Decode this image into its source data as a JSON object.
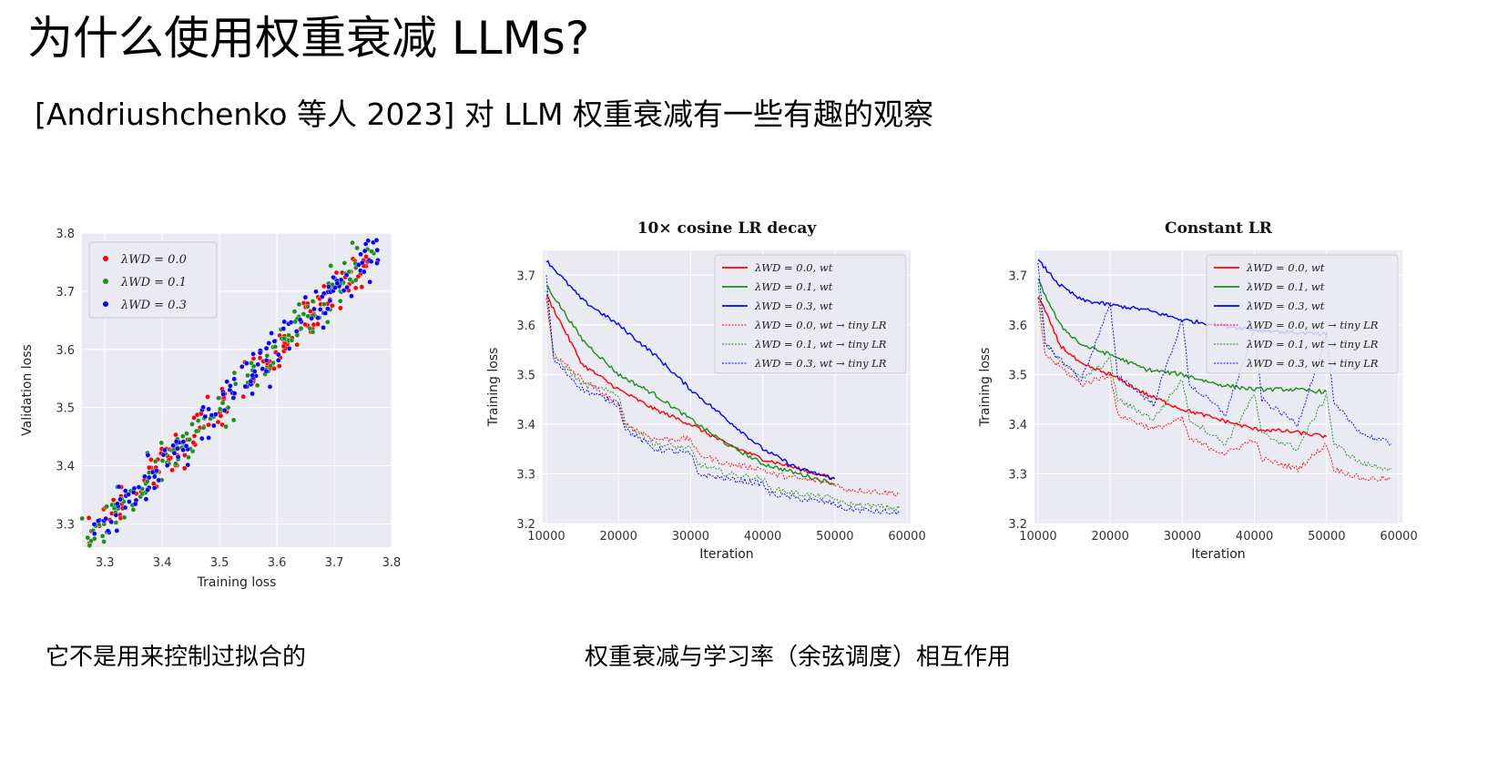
{
  "slide": {
    "title": "为什么使用权重衰减 LLMs?",
    "subtitle": "[Andriushchenko 等人 2023] 对 LLM 权重衰减有一些有趣的观察",
    "caption_left": "它不是用来控制过拟合的",
    "caption_right": "权重衰减与学习率（余弦调度）相互作用"
  },
  "chart_data": [
    {
      "type": "scatter",
      "title": "",
      "xlabel": "Training loss",
      "ylabel": "Validation loss",
      "xlim": [
        3.26,
        3.8
      ],
      "ylim": [
        3.26,
        3.8
      ],
      "xticks": [
        "3.3",
        "3.4",
        "3.5",
        "3.6",
        "3.7",
        "3.8"
      ],
      "yticks": [
        "3.3",
        "3.4",
        "3.5",
        "3.6",
        "3.7",
        "3.8"
      ],
      "legend_position": "top-left",
      "series": [
        {
          "name": "λWD = 0.0",
          "color": "#ff0000",
          "x_range": [
            3.27,
            3.76
          ],
          "spread": 0.018
        },
        {
          "name": "λWD = 0.1",
          "color": "#1a8f1a",
          "x_range": [
            3.26,
            3.77
          ],
          "spread": 0.018
        },
        {
          "name": "λWD = 0.3",
          "color": "#0000ff",
          "x_range": [
            3.28,
            3.79
          ],
          "spread": 0.018
        }
      ],
      "legend_labels": [
        "λWD = 0.0",
        "λWD = 0.1",
        "λWD = 0.3"
      ]
    },
    {
      "type": "line",
      "title": "10× cosine LR decay",
      "xlabel": "Iteration",
      "ylabel": "Training loss",
      "xlim": [
        9500,
        60500
      ],
      "ylim": [
        3.2,
        3.75
      ],
      "xticks": [
        "10000",
        "20000",
        "30000",
        "40000",
        "50000",
        "60000"
      ],
      "yticks": [
        "3.2",
        "3.3",
        "3.4",
        "3.5",
        "3.6",
        "3.7"
      ],
      "legend_position": "top-right",
      "legend_labels": [
        "λWD = 0.0, wt",
        "λWD = 0.1, wt",
        "λWD = 0.3, wt",
        "λWD = 0.0, wt → tiny LR",
        "λWD = 0.1, wt → tiny LR",
        "λWD = 0.3, wt → tiny LR"
      ],
      "series": [
        {
          "name": "λWD = 0.0, wt",
          "color": "#ff0000",
          "style": "solid",
          "x": [
            10000,
            15000,
            20000,
            25000,
            30000,
            35000,
            40000,
            45000,
            50000
          ],
          "y": [
            3.66,
            3.52,
            3.47,
            3.43,
            3.4,
            3.36,
            3.33,
            3.31,
            3.29
          ]
        },
        {
          "name": "λWD = 0.1, wt",
          "color": "#1a8f1a",
          "style": "solid",
          "x": [
            10000,
            15000,
            20000,
            25000,
            30000,
            35000,
            40000,
            45000,
            50000
          ],
          "y": [
            3.68,
            3.57,
            3.5,
            3.46,
            3.41,
            3.36,
            3.32,
            3.3,
            3.28
          ]
        },
        {
          "name": "λWD = 0.3, wt",
          "color": "#0000ff",
          "style": "solid",
          "x": [
            10000,
            15000,
            20000,
            25000,
            30000,
            35000,
            40000,
            45000,
            50000
          ],
          "y": [
            3.73,
            3.65,
            3.6,
            3.54,
            3.47,
            3.41,
            3.35,
            3.31,
            3.29
          ]
        },
        {
          "name": "λWD = 0.0, wt → tiny LR",
          "color": "#ff0000",
          "style": "dashed",
          "x": [
            10000,
            11000,
            15000,
            20000,
            21000,
            25000,
            30000,
            31000,
            35000,
            40000,
            41000,
            45000,
            50000,
            51000,
            55000,
            59000
          ],
          "y": [
            3.65,
            3.54,
            3.49,
            3.44,
            3.4,
            3.37,
            3.37,
            3.34,
            3.32,
            3.31,
            3.3,
            3.29,
            3.28,
            3.27,
            3.265,
            3.26
          ]
        },
        {
          "name": "λWD = 0.1, wt → tiny LR",
          "color": "#1a8f1a",
          "style": "dashed",
          "x": [
            10000,
            11000,
            15000,
            20000,
            21000,
            25000,
            30000,
            31000,
            35000,
            40000,
            41000,
            45000,
            50000,
            51000,
            55000,
            59000
          ],
          "y": [
            3.67,
            3.54,
            3.48,
            3.46,
            3.4,
            3.36,
            3.35,
            3.32,
            3.3,
            3.29,
            3.27,
            3.26,
            3.25,
            3.24,
            3.235,
            3.23
          ]
        },
        {
          "name": "λWD = 0.3, wt → tiny LR",
          "color": "#0000ff",
          "style": "dashed",
          "x": [
            10000,
            11000,
            15000,
            20000,
            21000,
            25000,
            30000,
            31000,
            35000,
            40000,
            41000,
            45000,
            50000,
            51000,
            55000,
            59000
          ],
          "y": [
            3.7,
            3.53,
            3.47,
            3.44,
            3.39,
            3.35,
            3.34,
            3.3,
            3.29,
            3.28,
            3.26,
            3.25,
            3.24,
            3.23,
            3.225,
            3.22
          ]
        }
      ]
    },
    {
      "type": "line",
      "title": "Constant LR",
      "xlabel": "Iteration",
      "ylabel": "Training loss",
      "xlim": [
        9500,
        60500
      ],
      "ylim": [
        3.2,
        3.75
      ],
      "xticks": [
        "10000",
        "20000",
        "30000",
        "40000",
        "50000",
        "60000"
      ],
      "yticks": [
        "3.2",
        "3.3",
        "3.4",
        "3.5",
        "3.6",
        "3.7"
      ],
      "legend_position": "top-right",
      "legend_labels": [
        "λWD = 0.0, wt",
        "λWD = 0.1, wt",
        "λWD = 0.3, wt",
        "λWD = 0.0, wt → tiny LR",
        "λWD = 0.1, wt → tiny LR",
        "λWD = 0.3, wt → tiny LR"
      ],
      "series": [
        {
          "name": "λWD = 0.0, wt",
          "color": "#ff0000",
          "style": "solid",
          "x": [
            10000,
            13000,
            16000,
            20000,
            25000,
            30000,
            35000,
            40000,
            45000,
            50000
          ],
          "y": [
            3.66,
            3.56,
            3.52,
            3.5,
            3.46,
            3.43,
            3.41,
            3.39,
            3.385,
            3.375
          ]
        },
        {
          "name": "λWD = 0.1, wt",
          "color": "#1a8f1a",
          "style": "solid",
          "x": [
            10000,
            13000,
            16000,
            20000,
            25000,
            30000,
            35000,
            40000,
            45000,
            50000
          ],
          "y": [
            3.69,
            3.6,
            3.56,
            3.54,
            3.51,
            3.5,
            3.48,
            3.47,
            3.47,
            3.465
          ]
        },
        {
          "name": "λWD = 0.3, wt",
          "color": "#0000ff",
          "style": "solid",
          "x": [
            10000,
            13000,
            16000,
            20000,
            25000,
            30000,
            35000,
            40000,
            45000,
            50000
          ],
          "y": [
            3.73,
            3.68,
            3.65,
            3.64,
            3.63,
            3.61,
            3.6,
            3.59,
            3.585,
            3.58
          ]
        },
        {
          "name": "λWD = 0.0, wt → tiny LR",
          "color": "#ff0000",
          "style": "dashed",
          "x": [
            10000,
            11000,
            16000,
            20000,
            21000,
            26000,
            30000,
            31000,
            36000,
            40000,
            41000,
            46000,
            50000,
            51000,
            55000,
            59000
          ],
          "y": [
            3.65,
            3.54,
            3.48,
            3.5,
            3.42,
            3.39,
            3.41,
            3.37,
            3.34,
            3.37,
            3.33,
            3.31,
            3.36,
            3.31,
            3.29,
            3.29
          ]
        },
        {
          "name": "λWD = 0.1, wt → tiny LR",
          "color": "#1a8f1a",
          "style": "dashed",
          "x": [
            10000,
            11000,
            16000,
            20000,
            21000,
            26000,
            30000,
            31000,
            36000,
            40000,
            41000,
            46000,
            50000,
            51000,
            55000,
            59000
          ],
          "y": [
            3.68,
            3.56,
            3.49,
            3.53,
            3.45,
            3.41,
            3.49,
            3.41,
            3.36,
            3.46,
            3.38,
            3.35,
            3.46,
            3.36,
            3.32,
            3.31
          ]
        },
        {
          "name": "λWD = 0.3, wt → tiny LR",
          "color": "#0000ff",
          "style": "dashed",
          "x": [
            10000,
            11000,
            16000,
            20000,
            21000,
            26000,
            30000,
            31000,
            36000,
            40000,
            41000,
            46000,
            50000,
            51000,
            55000,
            59000
          ],
          "y": [
            3.72,
            3.56,
            3.49,
            3.64,
            3.5,
            3.44,
            3.61,
            3.48,
            3.42,
            3.59,
            3.45,
            3.4,
            3.58,
            3.44,
            3.38,
            3.36
          ]
        }
      ]
    }
  ]
}
